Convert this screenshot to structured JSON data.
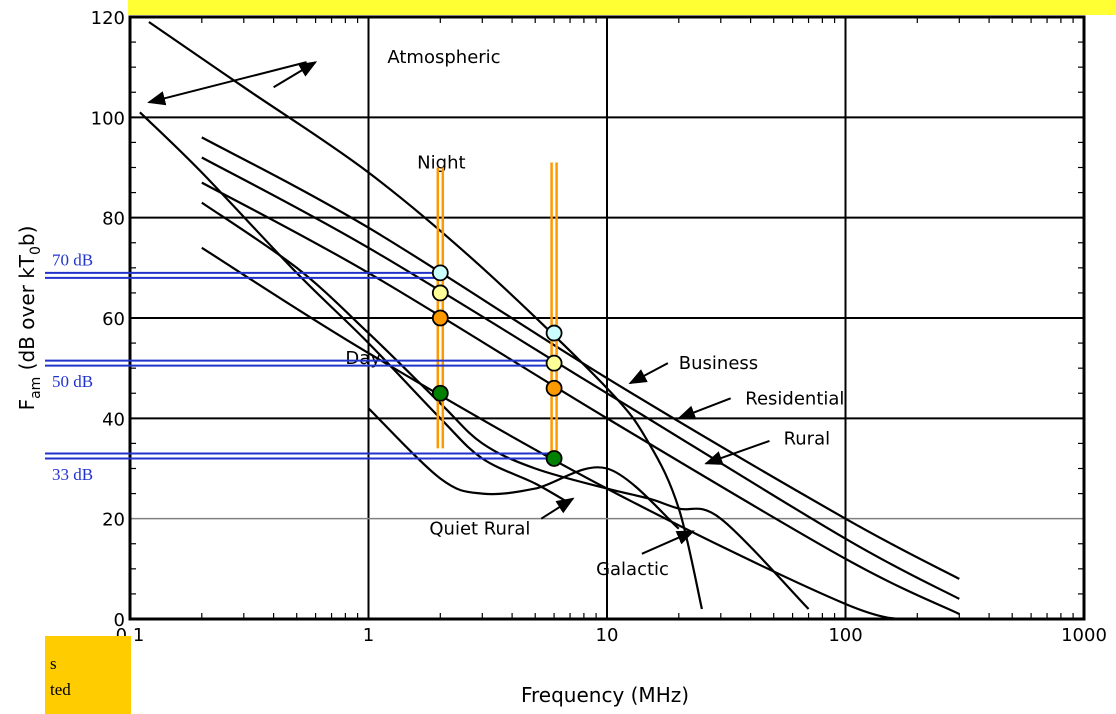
{
  "chart_data": {
    "type": "line",
    "title": "",
    "xlabel": "Frequency (MHz)",
    "ylabel_main": "F",
    "ylabel_sub": "am",
    "ylabel_rest": " (dB over kT",
    "ylabel_sub2": "0",
    "ylabel_end": "b)",
    "xscale": "log",
    "xlim": [
      0.1,
      1000
    ],
    "ylim": [
      0,
      120
    ],
    "grid": true,
    "x_ticks": [
      "0.1",
      "1",
      "10",
      "100",
      "1000"
    ],
    "x_tick_values": [
      0.1,
      1,
      10,
      100,
      1000
    ],
    "y_ticks": [
      "0",
      "20",
      "40",
      "60",
      "80",
      "100",
      "120"
    ],
    "y_tick_values": [
      0,
      20,
      40,
      60,
      80,
      100,
      120
    ],
    "series": [
      {
        "name": "Atmospheric",
        "x": [
          0.12,
          0.3,
          1,
          3,
          10,
          15,
          20,
          25
        ],
        "y": [
          119,
          106,
          89,
          70,
          46,
          35,
          22,
          2
        ]
      },
      {
        "name": "Night",
        "x": [
          0.11,
          0.2,
          0.5,
          1,
          2,
          3,
          5,
          7
        ],
        "y": [
          101,
          89,
          69,
          55,
          40,
          32,
          27,
          23
        ]
      },
      {
        "name": "Business",
        "x": [
          0.2,
          1,
          10,
          100,
          300
        ],
        "y": [
          96,
          78,
          48,
          20,
          8
        ]
      },
      {
        "name": "Residential",
        "x": [
          0.2,
          1,
          10,
          100,
          300
        ],
        "y": [
          92,
          74,
          45,
          16,
          4
        ]
      },
      {
        "name": "Rural",
        "x": [
          0.2,
          1,
          10,
          100,
          300
        ],
        "y": [
          87,
          69,
          40,
          12,
          1
        ]
      },
      {
        "name": "Quiet Rural",
        "x": [
          0.2,
          1,
          10,
          100,
          200
        ],
        "y": [
          74,
          53,
          26,
          3,
          0
        ]
      },
      {
        "name": "Day",
        "x": [
          0.2,
          0.5,
          1,
          2,
          3,
          5,
          10,
          15,
          20,
          30,
          70
        ],
        "y": [
          83,
          70,
          57,
          43,
          35,
          30,
          26,
          24,
          22,
          20,
          2
        ]
      },
      {
        "name": "Galactic",
        "x": [
          1,
          2,
          3,
          5,
          10,
          20
        ],
        "y": [
          42,
          28,
          25,
          26,
          30,
          18
        ]
      }
    ],
    "markers": [
      {
        "x": 2,
        "y": 69,
        "color": "#ccffff"
      },
      {
        "x": 2,
        "y": 65,
        "color": "#ffff99"
      },
      {
        "x": 2,
        "y": 60,
        "color": "#ff9900"
      },
      {
        "x": 2,
        "y": 45,
        "color": "#008000"
      },
      {
        "x": 6,
        "y": 57,
        "color": "#ccffff"
      },
      {
        "x": 6,
        "y": 51,
        "color": "#ffff99"
      },
      {
        "x": 6,
        "y": 46,
        "color": "#ff9900"
      },
      {
        "x": 6,
        "y": 32,
        "color": "#008000"
      }
    ],
    "vertical_markers": [
      {
        "x": 2,
        "y_from": 34,
        "y_to": 90,
        "color": "#ff9900"
      },
      {
        "x": 6,
        "y_from": 31,
        "y_to": 91,
        "color": "#ff9900"
      }
    ],
    "reference_lines": [
      {
        "label": "70 dB",
        "y": 68.5,
        "x_to": 2,
        "color": "#2233cc"
      },
      {
        "label": "50 dB",
        "y": 51,
        "x_to": 6,
        "color": "#2233cc"
      },
      {
        "label": "33 dB",
        "y": 32.5,
        "x_to": 6,
        "color": "#2233cc"
      }
    ],
    "annotations": [
      {
        "text": "Atmospheric",
        "x": 1.2,
        "y": 112
      },
      {
        "text": "Night",
        "x": 1.6,
        "y": 91
      },
      {
        "text": "Day",
        "x": 0.8,
        "y": 52
      },
      {
        "text": "Business",
        "x": 20,
        "y": 51
      },
      {
        "text": "Residential",
        "x": 38,
        "y": 44
      },
      {
        "text": "Rural",
        "x": 55,
        "y": 36
      },
      {
        "text": "Quiet Rural",
        "x": 1.8,
        "y": 18
      },
      {
        "text": "Galactic",
        "x": 9,
        "y": 10
      }
    ],
    "arrows": [
      {
        "x1": 0.55,
        "y1": 111,
        "x2": 0.12,
        "y2": 103
      },
      {
        "x1": 0.4,
        "y1": 106,
        "x2": 0.6,
        "y2": 111
      },
      {
        "x1": 18,
        "y1": 51,
        "x2": 12.5,
        "y2": 47
      },
      {
        "x1": 33,
        "y1": 44,
        "x2": 20,
        "y2": 40
      },
      {
        "x1": 48,
        "y1": 35.5,
        "x2": 26,
        "y2": 31
      },
      {
        "x1": 5.3,
        "y1": 20,
        "x2": 7.2,
        "y2": 24
      },
      {
        "x1": 14,
        "y1": 13,
        "x2": 23,
        "y2": 17.5
      }
    ],
    "colors": {
      "grid": "#000000",
      "gridlight": "#808080",
      "curve": "#000000",
      "ref": "#2233cc",
      "vline": "#ff9900"
    }
  },
  "note": {
    "line1": "s",
    "line2": "ted"
  }
}
